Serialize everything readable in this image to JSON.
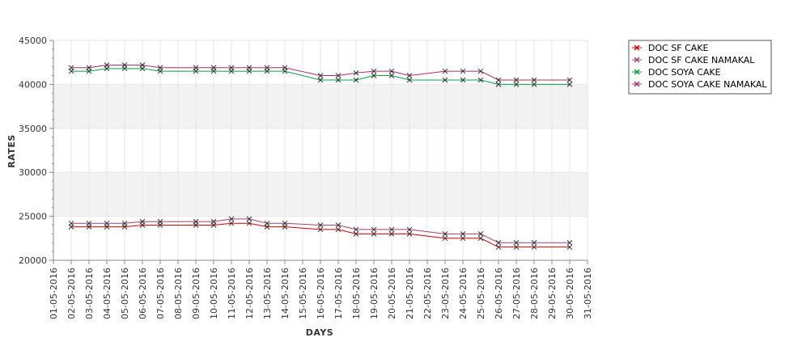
{
  "chart_data": {
    "type": "line",
    "title": "",
    "xlabel": "DAYS",
    "ylabel": "RATES",
    "ylim": [
      20000,
      45000
    ],
    "yticks": [
      20000,
      25000,
      30000,
      35000,
      40000,
      45000
    ],
    "ytick_labels": [
      "20000",
      "25000",
      "30000",
      "35000",
      "40000",
      "45000"
    ],
    "grid": true,
    "legend_position": "top-right",
    "x": [
      "01-05-2016",
      "02-05-2016",
      "03-05-2016",
      "04-05-2016",
      "05-05-2016",
      "06-05-2016",
      "07-05-2016",
      "08-05-2016",
      "09-05-2016",
      "10-05-2016",
      "11-05-2016",
      "12-05-2016",
      "13-05-2016",
      "14-05-2016",
      "15-05-2016",
      "16-05-2016",
      "17-05-2016",
      "18-05-2016",
      "19-05-2016",
      "20-05-2016",
      "21-05-2016",
      "22-05-2016",
      "23-05-2016",
      "24-05-2016",
      "25-05-2016",
      "26-05-2016",
      "27-05-2016",
      "28-05-2016",
      "29-05-2016",
      "30-05-2016",
      "31-05-2016"
    ],
    "series": [
      {
        "name": "DOC SF CAKE",
        "color": "#cc0000",
        "x": [
          "02-05-2016",
          "03-05-2016",
          "04-05-2016",
          "05-05-2016",
          "06-05-2016",
          "07-05-2016",
          "09-05-2016",
          "10-05-2016",
          "11-05-2016",
          "12-05-2016",
          "13-05-2016",
          "14-05-2016",
          "16-05-2016",
          "17-05-2016",
          "18-05-2016",
          "19-05-2016",
          "20-05-2016",
          "21-05-2016",
          "23-05-2016",
          "24-05-2016",
          "25-05-2016",
          "26-05-2016",
          "27-05-2016",
          "28-05-2016",
          "30-05-2016"
        ],
        "values": [
          23800,
          23800,
          23800,
          23800,
          24000,
          24000,
          24000,
          24000,
          24200,
          24200,
          23800,
          23800,
          23500,
          23500,
          23000,
          23000,
          23000,
          23000,
          22500,
          22500,
          22500,
          21500,
          21500,
          21500,
          21500
        ]
      },
      {
        "name": "DOC SF CAKE NAMAKAL",
        "color": "#a0406a",
        "x": [
          "02-05-2016",
          "03-05-2016",
          "04-05-2016",
          "05-05-2016",
          "06-05-2016",
          "07-05-2016",
          "09-05-2016",
          "10-05-2016",
          "11-05-2016",
          "12-05-2016",
          "13-05-2016",
          "14-05-2016",
          "16-05-2016",
          "17-05-2016",
          "18-05-2016",
          "19-05-2016",
          "20-05-2016",
          "21-05-2016",
          "23-05-2016",
          "24-05-2016",
          "25-05-2016",
          "26-05-2016",
          "27-05-2016",
          "28-05-2016",
          "30-05-2016"
        ],
        "values": [
          24200,
          24200,
          24200,
          24200,
          24400,
          24400,
          24400,
          24400,
          24700,
          24700,
          24200,
          24200,
          24000,
          24000,
          23500,
          23500,
          23500,
          23500,
          23000,
          23000,
          23000,
          22000,
          22000,
          22000,
          22000
        ]
      },
      {
        "name": "DOC SOYA CAKE",
        "color": "#00a040",
        "x": [
          "02-05-2016",
          "03-05-2016",
          "04-05-2016",
          "05-05-2016",
          "06-05-2016",
          "07-05-2016",
          "09-05-2016",
          "10-05-2016",
          "11-05-2016",
          "12-05-2016",
          "13-05-2016",
          "14-05-2016",
          "16-05-2016",
          "17-05-2016",
          "18-05-2016",
          "19-05-2016",
          "20-05-2016",
          "21-05-2016",
          "23-05-2016",
          "24-05-2016",
          "25-05-2016",
          "26-05-2016",
          "27-05-2016",
          "28-05-2016",
          "30-05-2016"
        ],
        "values": [
          41500,
          41500,
          41800,
          41800,
          41800,
          41500,
          41500,
          41500,
          41500,
          41500,
          41500,
          41500,
          40500,
          40500,
          40500,
          41000,
          41000,
          40500,
          40500,
          40500,
          40500,
          40000,
          40000,
          40000,
          40000
        ]
      },
      {
        "name": "DOC SOYA CAKE NAMAKAL",
        "color": "#a0306a",
        "x": [
          "02-05-2016",
          "03-05-2016",
          "04-05-2016",
          "05-05-2016",
          "06-05-2016",
          "07-05-2016",
          "09-05-2016",
          "10-05-2016",
          "11-05-2016",
          "12-05-2016",
          "13-05-2016",
          "14-05-2016",
          "16-05-2016",
          "17-05-2016",
          "18-05-2016",
          "19-05-2016",
          "20-05-2016",
          "21-05-2016",
          "23-05-2016",
          "24-05-2016",
          "25-05-2016",
          "26-05-2016",
          "27-05-2016",
          "28-05-2016",
          "30-05-2016"
        ],
        "values": [
          41900,
          41900,
          42200,
          42200,
          42200,
          41900,
          41900,
          41900,
          41900,
          41900,
          41900,
          41900,
          41000,
          41000,
          41300,
          41500,
          41500,
          41000,
          41500,
          41500,
          41500,
          40500,
          40500,
          40500,
          40500
        ]
      }
    ]
  }
}
